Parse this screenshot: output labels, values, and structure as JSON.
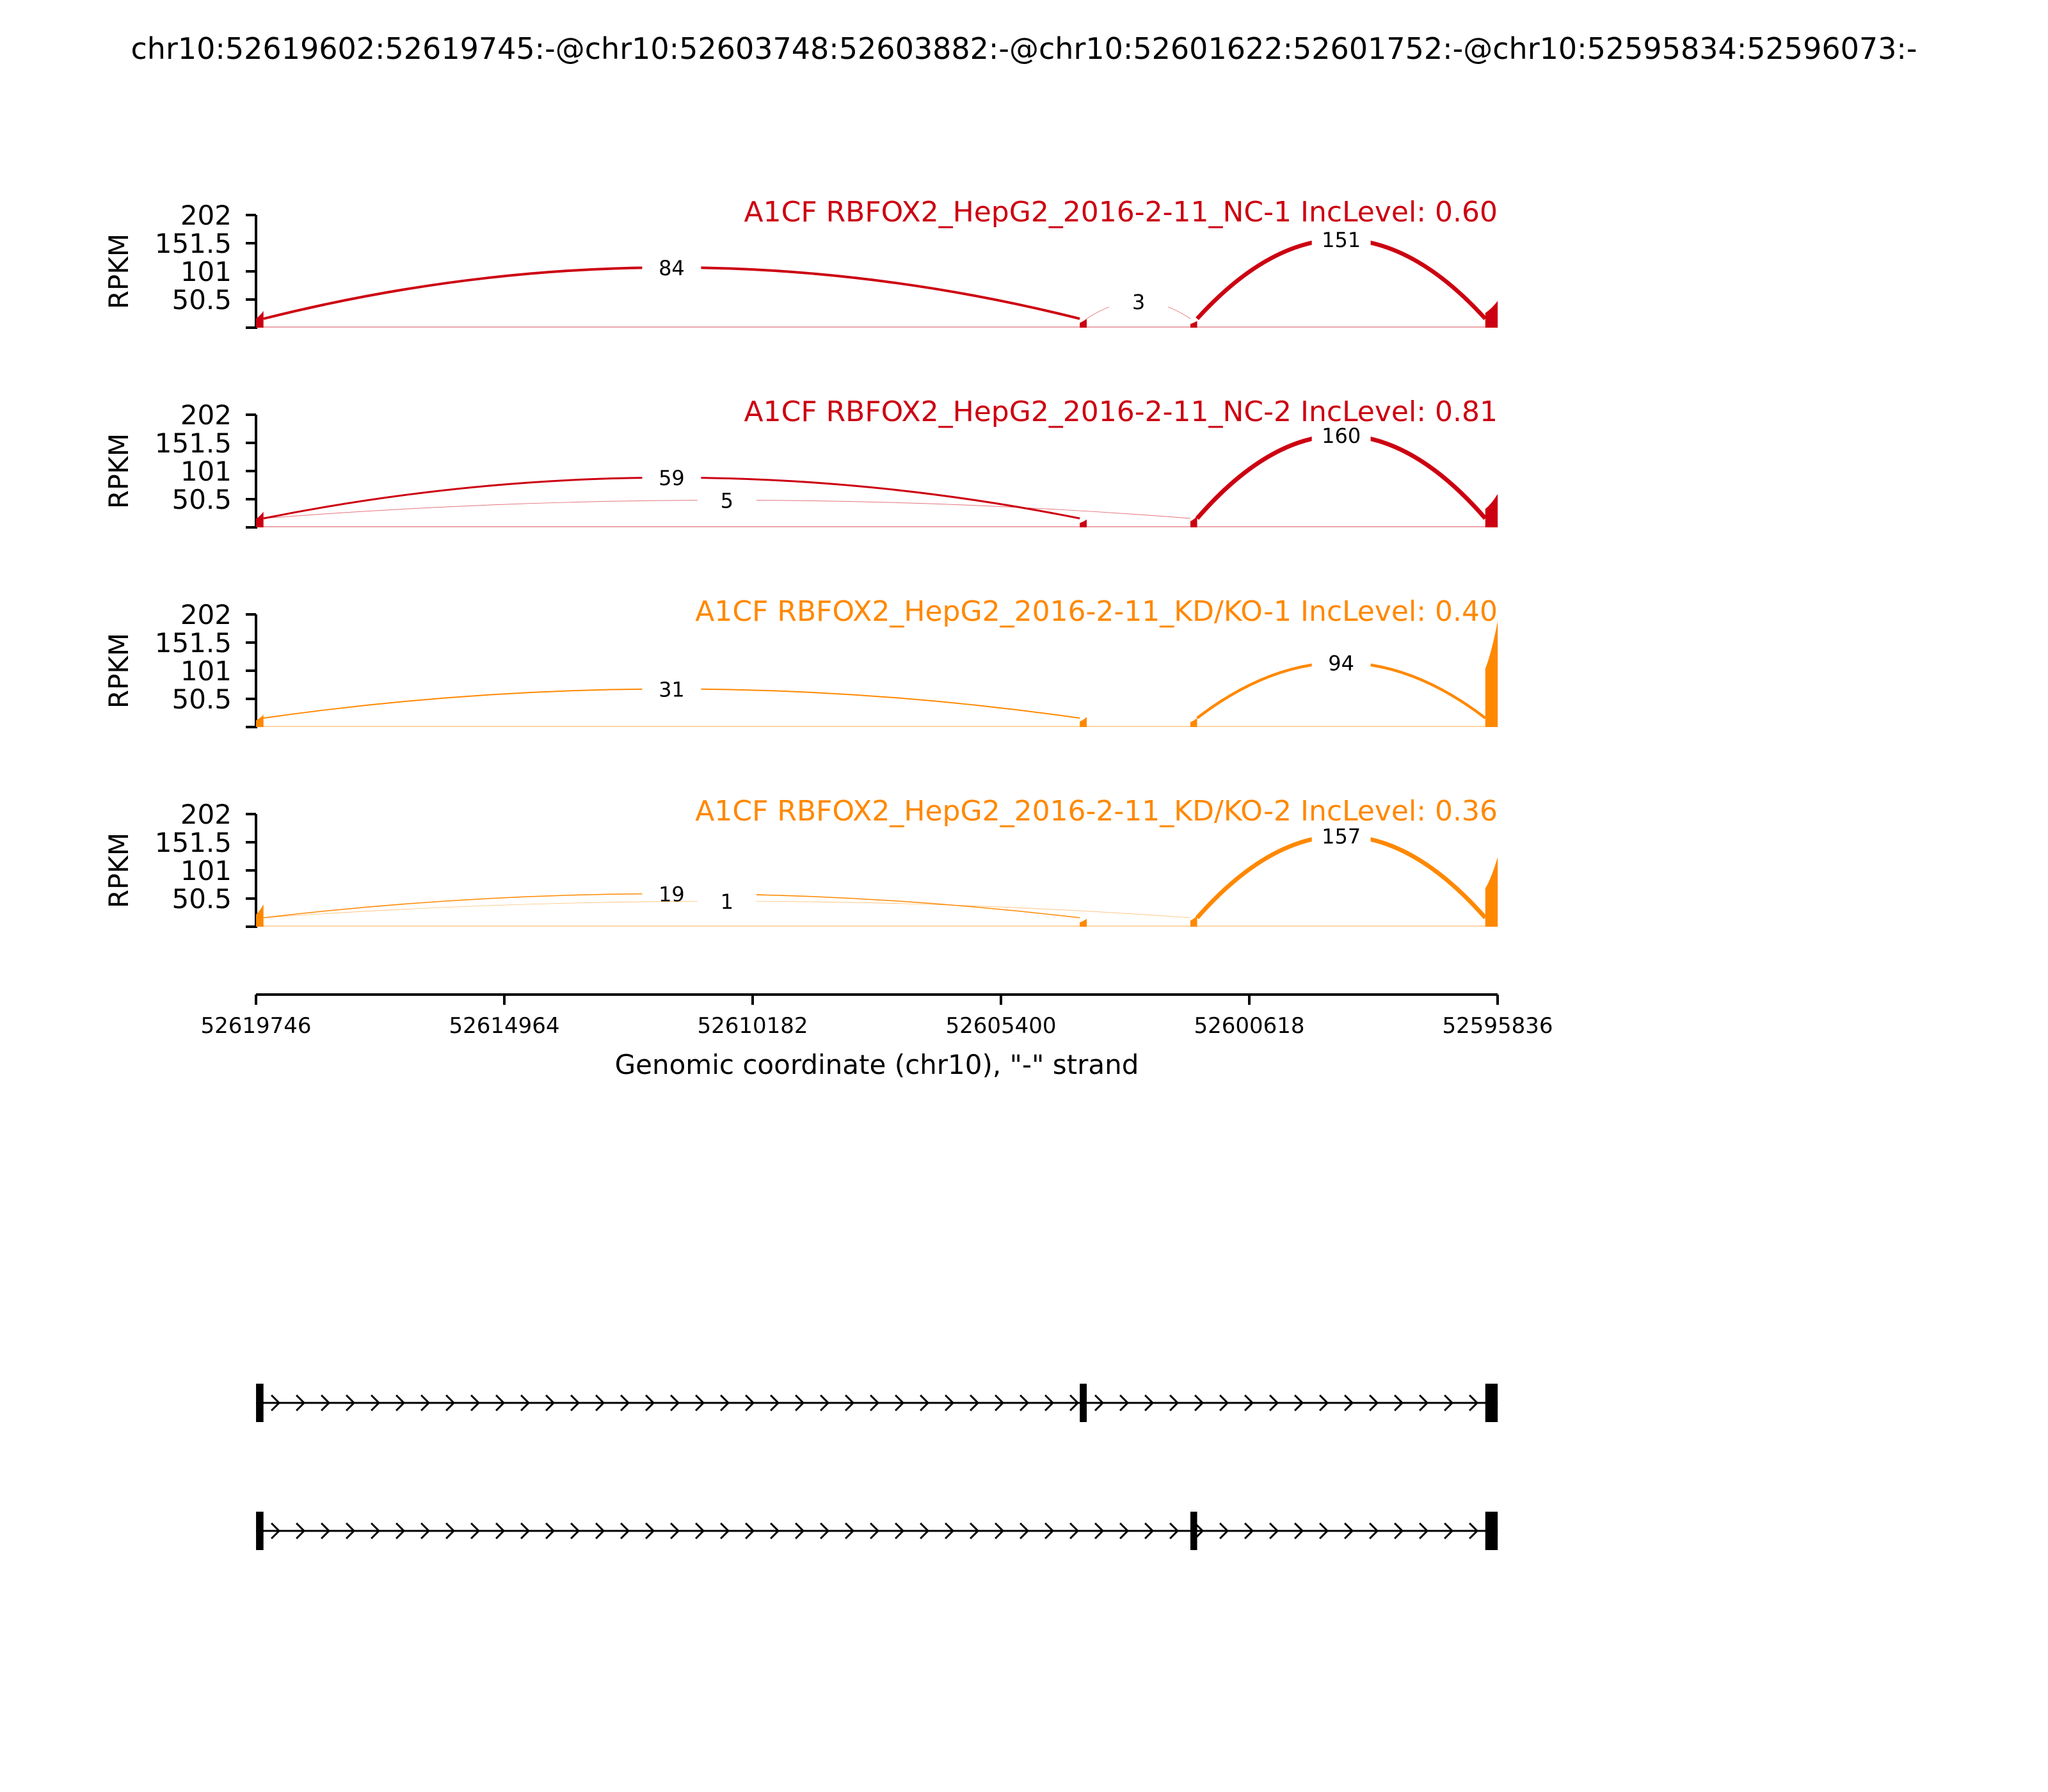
{
  "figure": {
    "title": "chr10:52619602:52619745:-@chr10:52603748:52603882:-@chr10:52601622:52601752:-@chr10:52595834:52596073:-"
  },
  "chart_data": {
    "type": "sashimi",
    "strand": "-",
    "chromosome": "chr10",
    "xlim": [
      52619746,
      52595836
    ],
    "ylim": [
      0,
      202
    ],
    "yticks": [
      "202",
      "151.5",
      "101",
      "50.5"
    ],
    "ylabel": "RPKM",
    "xticks": [
      "52619746",
      "52614964",
      "52610182",
      "52605400",
      "52600618",
      "52595836"
    ],
    "xlabel": "Genomic coordinate (chr10), \"-\" strand",
    "exons": [
      {
        "start": 52619602,
        "end": 52619745
      },
      {
        "start": 52603748,
        "end": 52603882
      },
      {
        "start": 52601622,
        "end": 52601752
      },
      {
        "start": 52595834,
        "end": 52596073
      }
    ],
    "isoforms": [
      {
        "exons": [
          0,
          1,
          3
        ]
      },
      {
        "exons": [
          0,
          2,
          3
        ]
      }
    ],
    "tracks": [
      {
        "label": "A1CF RBFOX2_HepG2_2016-2-11_NC-1 IncLevel: 0.60",
        "color": "#cc0011",
        "coverage": [
          30,
          16,
          12,
          48
        ],
        "junctions": [
          {
            "from": 52619602,
            "to": 52603882,
            "count": "84",
            "value": 84,
            "side": "up"
          },
          {
            "from": 52603748,
            "to": 52601752,
            "count": "3",
            "value": 3,
            "side": "up"
          },
          {
            "from": 52601622,
            "to": 52596073,
            "count": "151",
            "value": 151,
            "side": "up"
          }
        ]
      },
      {
        "label": "A1CF RBFOX2_HepG2_2016-2-11_NC-2 IncLevel: 0.81",
        "color": "#cc0011",
        "coverage": [
          28,
          14,
          20,
          60
        ],
        "junctions": [
          {
            "from": 52619602,
            "to": 52603882,
            "count": "59",
            "value": 59,
            "side": "up"
          },
          {
            "from": 52619602,
            "to": 52601752,
            "count": "5",
            "value": 5,
            "side": "up"
          },
          {
            "from": 52601622,
            "to": 52596073,
            "count": "160",
            "value": 160,
            "side": "up"
          }
        ]
      },
      {
        "label": "A1CF RBFOX2_HepG2_2016-2-11_KD/KO-1 IncLevel: 0.40",
        "color": "#ff8800",
        "coverage": [
          22,
          18,
          16,
          190
        ],
        "junctions": [
          {
            "from": 52619602,
            "to": 52603882,
            "count": "31",
            "value": 31,
            "side": "up"
          },
          {
            "from": 52601622,
            "to": 52596073,
            "count": "94",
            "value": 94,
            "side": "up"
          }
        ]
      },
      {
        "label": "A1CF RBFOX2_HepG2_2016-2-11_KD/KO-2 IncLevel: 0.36",
        "color": "#ff8800",
        "coverage": [
          40,
          14,
          20,
          125
        ],
        "junctions": [
          {
            "from": 52619602,
            "to": 52603882,
            "count": "19",
            "value": 19,
            "side": "up"
          },
          {
            "from": 52619602,
            "to": 52601752,
            "count": "1",
            "value": 1,
            "side": "up"
          },
          {
            "from": 52601622,
            "to": 52596073,
            "count": "157",
            "value": 157,
            "side": "up"
          }
        ]
      }
    ]
  }
}
